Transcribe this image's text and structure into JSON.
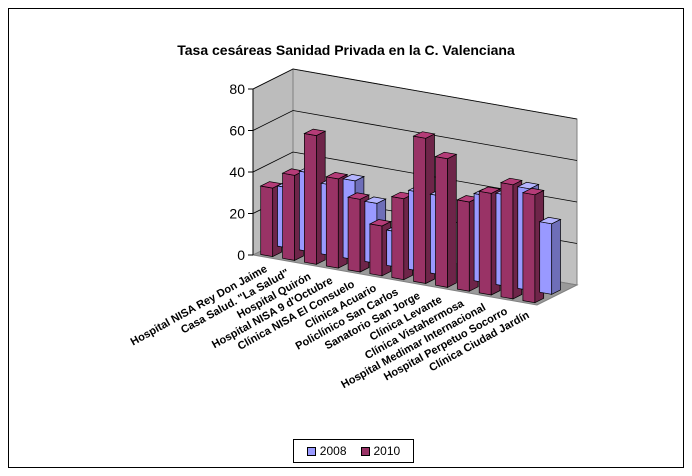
{
  "chart_data": {
    "type": "bar",
    "title": "Tasa cesáreas Sanidad Privada en la C. Valenciana",
    "categories": [
      "Hospital NISA Rey Don Jaime",
      "Casa Salud. \"La Salud\"",
      "Hospital Quirón",
      "Hospital NISA 9 d'Octubre",
      "Clínica NISA El Consuelo",
      "Clínica Acuario",
      "Policlínico San Carlos",
      "Sanatorio San Jorge",
      "Clínica Levante",
      "Clínica Vistahermosa",
      "Hospital Medimar Internacional",
      "Hospital Perpetuo Socorro",
      "Clínica Ciudad Jardín"
    ],
    "series": [
      {
        "name": "2008",
        "color": "#9999ff",
        "values": [
          29,
          38,
          34,
          38,
          29,
          17,
          38,
          38,
          null,
          42,
          44,
          49,
          34
        ]
      },
      {
        "name": "2010",
        "color": "#993366",
        "values": [
          33,
          41,
          62,
          43,
          35,
          24,
          39,
          70,
          62,
          43,
          49,
          55,
          52
        ]
      }
    ],
    "yticks": [
      "0",
      "20",
      "40",
      "60",
      "80"
    ],
    "ylim": [
      0,
      80
    ],
    "legend_position": "bottom",
    "grid": true,
    "style": "3d-column"
  }
}
